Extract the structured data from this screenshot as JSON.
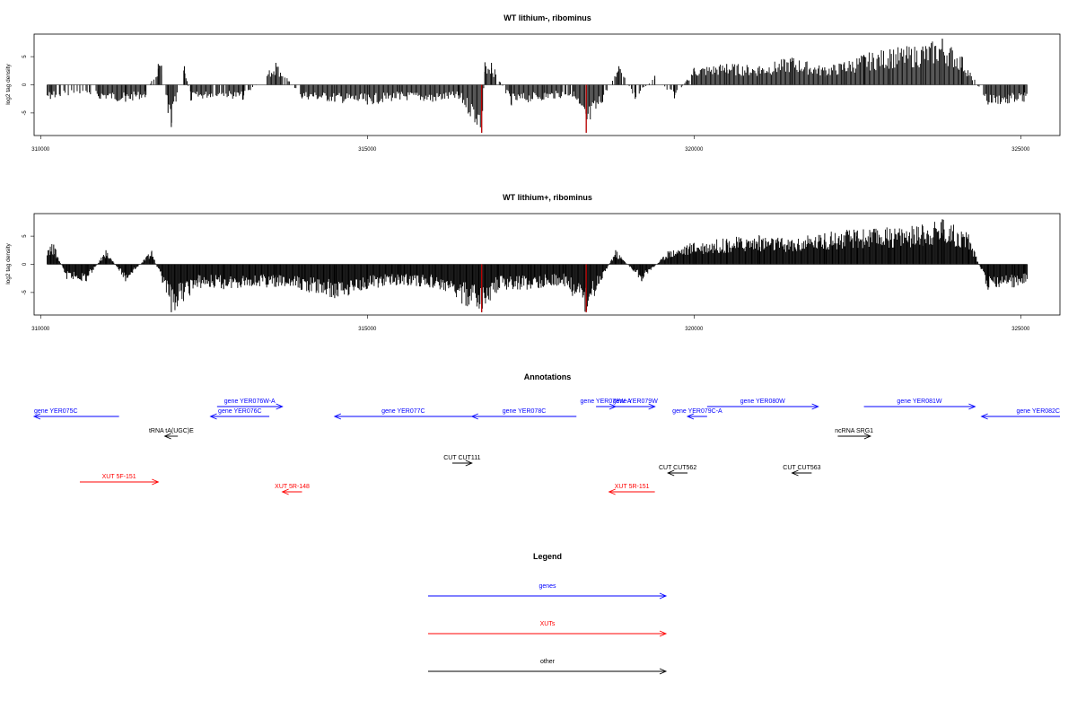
{
  "colors": {
    "gene": "#0000ff",
    "xut": "#ff0000",
    "other": "#000000",
    "highlight": "#cc0000",
    "bar": "#000000"
  },
  "chart_data": [
    {
      "type": "bar",
      "title": "WT lithium-, ribominus",
      "ylabel": "log2 tag density",
      "xlim": [
        309900,
        325600
      ],
      "ylim": [
        -9,
        9
      ],
      "x_ticks": [
        310000,
        315000,
        320000,
        325000
      ],
      "y_ticks": [
        -5,
        0,
        5
      ],
      "grid": false,
      "series": [
        {
          "x_start": 310100,
          "x_end": 325100,
          "points": [
            {
              "x": 310150,
              "y": -2.5
            },
            {
              "x": 310300,
              "y": -2.0
            },
            {
              "x": 310600,
              "y": -1.5
            },
            {
              "x": 310900,
              "y": -2.4
            },
            {
              "x": 311300,
              "y": -3.0
            },
            {
              "x": 311600,
              "y": -2.2
            },
            {
              "x": 311800,
              "y": 3.7
            },
            {
              "x": 311850,
              "y": 3.4
            },
            {
              "x": 311950,
              "y": -5.0
            },
            {
              "x": 312000,
              "y": -7.5
            },
            {
              "x": 312200,
              "y": 3.3
            },
            {
              "x": 312300,
              "y": -2.8
            },
            {
              "x": 312700,
              "y": -2.0
            },
            {
              "x": 313100,
              "y": -2.6
            },
            {
              "x": 313600,
              "y": 3.9
            },
            {
              "x": 314000,
              "y": -2.4
            },
            {
              "x": 314500,
              "y": -3.0
            },
            {
              "x": 315000,
              "y": -3.5
            },
            {
              "x": 315500,
              "y": -2.6
            },
            {
              "x": 316000,
              "y": -3.0
            },
            {
              "x": 316400,
              "y": -2.5
            },
            {
              "x": 316750,
              "y": -8.5
            },
            {
              "x": 316800,
              "y": 4.0
            },
            {
              "x": 316900,
              "y": 3.9
            },
            {
              "x": 317200,
              "y": -3.5
            },
            {
              "x": 317700,
              "y": -2.6
            },
            {
              "x": 318150,
              "y": -2.0
            },
            {
              "x": 318350,
              "y": -8.5
            },
            {
              "x": 318600,
              "y": -3.0
            },
            {
              "x": 318850,
              "y": 3.3
            },
            {
              "x": 319100,
              "y": -2.5
            },
            {
              "x": 319400,
              "y": 1.6
            },
            {
              "x": 319700,
              "y": -2.4
            },
            {
              "x": 320000,
              "y": 3.0
            },
            {
              "x": 320500,
              "y": 3.7
            },
            {
              "x": 321000,
              "y": 3.3
            },
            {
              "x": 321500,
              "y": 4.8
            },
            {
              "x": 322000,
              "y": 3.1
            },
            {
              "x": 322300,
              "y": 4.0
            },
            {
              "x": 322600,
              "y": 5.3
            },
            {
              "x": 323000,
              "y": 6.3
            },
            {
              "x": 323500,
              "y": 6.8
            },
            {
              "x": 323800,
              "y": 8.2
            },
            {
              "x": 324100,
              "y": 5.0
            },
            {
              "x": 324500,
              "y": -3.5
            },
            {
              "x": 324800,
              "y": -3.3
            },
            {
              "x": 325050,
              "y": -3.0
            }
          ],
          "highlight_x": [
            316750,
            318350
          ]
        }
      ]
    },
    {
      "type": "bar",
      "title": "WT lithium+, ribominus",
      "ylabel": "log2 tag density",
      "xlim": [
        309900,
        325600
      ],
      "ylim": [
        -9,
        9
      ],
      "x_ticks": [
        310000,
        315000,
        320000,
        325000
      ],
      "y_ticks": [
        -5,
        0,
        5
      ],
      "grid": false,
      "series": [
        {
          "x_start": 310100,
          "x_end": 325100,
          "points": [
            {
              "x": 310200,
              "y": 3.5
            },
            {
              "x": 310400,
              "y": -2.6
            },
            {
              "x": 310700,
              "y": -3.0
            },
            {
              "x": 311000,
              "y": 2.5
            },
            {
              "x": 311300,
              "y": -3.0
            },
            {
              "x": 311700,
              "y": 2.4
            },
            {
              "x": 312000,
              "y": -8.5
            },
            {
              "x": 312400,
              "y": -4.0
            },
            {
              "x": 312800,
              "y": -4.3
            },
            {
              "x": 313200,
              "y": -3.8
            },
            {
              "x": 313600,
              "y": -4.0
            },
            {
              "x": 314000,
              "y": -4.5
            },
            {
              "x": 314500,
              "y": -6.0
            },
            {
              "x": 315000,
              "y": -4.3
            },
            {
              "x": 315500,
              "y": -3.5
            },
            {
              "x": 316000,
              "y": -4.0
            },
            {
              "x": 316750,
              "y": -8.5
            },
            {
              "x": 317000,
              "y": -4.5
            },
            {
              "x": 317500,
              "y": -4.3
            },
            {
              "x": 318000,
              "y": -3.5
            },
            {
              "x": 318350,
              "y": -8.5
            },
            {
              "x": 318800,
              "y": 2.5
            },
            {
              "x": 319200,
              "y": -3.0
            },
            {
              "x": 319600,
              "y": 2.3
            },
            {
              "x": 320000,
              "y": 3.8
            },
            {
              "x": 320500,
              "y": 4.5
            },
            {
              "x": 321000,
              "y": 5.0
            },
            {
              "x": 321500,
              "y": 4.3
            },
            {
              "x": 322000,
              "y": 5.5
            },
            {
              "x": 322500,
              "y": 6.0
            },
            {
              "x": 323000,
              "y": 6.3
            },
            {
              "x": 323500,
              "y": 6.8
            },
            {
              "x": 323800,
              "y": 8.0
            },
            {
              "x": 324200,
              "y": 5.3
            },
            {
              "x": 324500,
              "y": -4.5
            },
            {
              "x": 324900,
              "y": -4.0
            },
            {
              "x": 325050,
              "y": -3.3
            }
          ],
          "highlight_x": [
            316750,
            318350
          ]
        }
      ]
    },
    {
      "type": "table",
      "title": "Annotations",
      "xlim": [
        309900,
        325600
      ],
      "features": [
        {
          "label": "gene YER075C",
          "kind": "gene",
          "strand": "-",
          "start": 309900,
          "end": 311200,
          "row": 1
        },
        {
          "label": "gene YER076W-A",
          "kind": "gene",
          "strand": "+",
          "start": 312700,
          "end": 313700,
          "row": 0
        },
        {
          "label": "gene YER076C",
          "kind": "gene",
          "strand": "-",
          "start": 312600,
          "end": 313500,
          "row": 1
        },
        {
          "label": "tRNA tA(UGC)E",
          "kind": "other",
          "strand": "-",
          "start": 311900,
          "end": 312100,
          "row": 2
        },
        {
          "label": "gene YER077C",
          "kind": "gene",
          "strand": "-",
          "start": 314500,
          "end": 316600,
          "row": 1
        },
        {
          "label": "gene YER078C",
          "kind": "gene",
          "strand": "-",
          "start": 316600,
          "end": 318200,
          "row": 1
        },
        {
          "label": "gene YER078W-A",
          "kind": "gene",
          "strand": "+",
          "start": 318500,
          "end": 318800,
          "row": 0
        },
        {
          "label": "gene YER079W",
          "kind": "gene",
          "strand": "+",
          "start": 318800,
          "end": 319400,
          "row": 0
        },
        {
          "label": "gene YER079C-A",
          "kind": "gene",
          "strand": "-",
          "start": 319900,
          "end": 320200,
          "row": 1
        },
        {
          "label": "gene YER080W",
          "kind": "gene",
          "strand": "+",
          "start": 320200,
          "end": 321900,
          "row": 0
        },
        {
          "label": "ncRNA SRG1",
          "kind": "other",
          "strand": "+",
          "start": 322200,
          "end": 322700,
          "row": 2
        },
        {
          "label": "gene YER081W",
          "kind": "gene",
          "strand": "+",
          "start": 322600,
          "end": 324300,
          "row": 0
        },
        {
          "label": "gene YER082C",
          "kind": "gene",
          "strand": "-",
          "start": 324400,
          "end": 325600,
          "row": 1
        },
        {
          "label": "CUT CUT111",
          "kind": "other",
          "strand": "+",
          "start": 316300,
          "end": 316600,
          "row": 3
        },
        {
          "label": "CUT CUT562",
          "kind": "other",
          "strand": "-",
          "start": 319600,
          "end": 319900,
          "row": 4
        },
        {
          "label": "CUT CUT563",
          "kind": "other",
          "strand": "-",
          "start": 321500,
          "end": 321800,
          "row": 4
        },
        {
          "label": "XUT 5F-151",
          "kind": "xut",
          "strand": "+",
          "start": 310600,
          "end": 311800,
          "row": 5
        },
        {
          "label": "XUT 5R-148",
          "kind": "xut",
          "strand": "-",
          "start": 313700,
          "end": 314000,
          "row": 6
        },
        {
          "label": "XUT 5R-151",
          "kind": "xut",
          "strand": "-",
          "start": 318700,
          "end": 319400,
          "row": 6
        }
      ]
    },
    {
      "type": "table",
      "title": "Legend",
      "entries": [
        {
          "label": "genes",
          "kind": "gene"
        },
        {
          "label": "XUTs",
          "kind": "xut"
        },
        {
          "label": "other",
          "kind": "other"
        }
      ]
    }
  ]
}
